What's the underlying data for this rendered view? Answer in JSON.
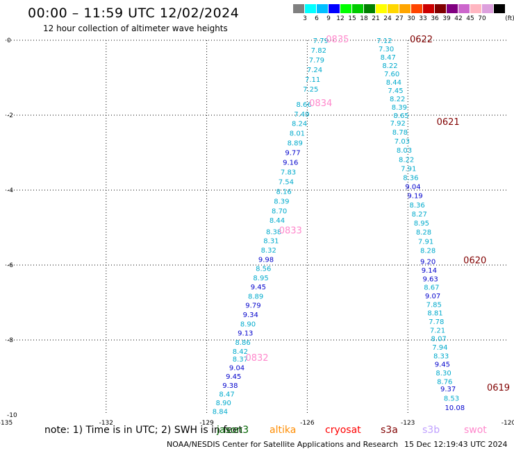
{
  "title": "00:00 – 11:59 UTC 12/02/2024",
  "subtitle": "12 hour collection of altimeter wave heights",
  "colorbar": {
    "unit": "(ft)",
    "colors": [
      "#808080",
      "#00ffff",
      "#00bfff",
      "#0000ff",
      "#00ff00",
      "#00cc00",
      "#008000",
      "#ffff00",
      "#ffd700",
      "#ffa500",
      "#ff4500",
      "#cc0000",
      "#800000",
      "#800080",
      "#cc66cc",
      "#ffb6c1",
      "#dda0dd",
      "#000000"
    ],
    "labels": [
      "3",
      "6",
      "9",
      "12",
      "15",
      "18",
      "21",
      "24",
      "27",
      "30",
      "33",
      "36",
      "39",
      "42",
      "45",
      "70"
    ]
  },
  "axes": {
    "x_ticks": [
      "-135",
      "-132",
      "-129",
      "-126",
      "-123",
      "-120"
    ],
    "y_ticks": [
      "0",
      "-2",
      "-4",
      "-6",
      "-8",
      "-10"
    ],
    "x_range": [
      -135,
      -120
    ],
    "y_range": [
      -10,
      0
    ]
  },
  "passes": [
    {
      "label": "0622",
      "color": "#800000",
      "values": [
        "7.12",
        "7.30",
        "8.47",
        "8.22",
        "7.60",
        "8.44",
        "7.45",
        "8.22",
        "8.39",
        "8.65"
      ]
    },
    {
      "label": "0621",
      "color": "#800000",
      "values": [
        "7.92",
        "8.78",
        "7.03",
        "8.03",
        "8.22",
        "7.91",
        "8.36",
        "9.04",
        "9.19",
        "8.36",
        "8.27",
        "8.95",
        "8.28",
        "7.91",
        "8.28"
      ]
    },
    {
      "label": "0620",
      "color": "#800000",
      "values": [
        "9.20",
        "9.14",
        "9.63",
        "8.67",
        "9.07",
        "7.85",
        "8.81",
        "7.78",
        "7.21",
        "8.07",
        "7.94",
        "8.33",
        "9.45",
        "8.30",
        "8.76"
      ]
    },
    {
      "label": "0619",
      "color": "#800000",
      "values": [
        "9.37",
        "8.53",
        "10.08"
      ]
    },
    {
      "label": "0835",
      "color": "#ff88cc",
      "values": [
        "7.79",
        "7.82",
        "7.79",
        "7.24",
        "7.11",
        "7.25"
      ]
    },
    {
      "label": "0834",
      "color": "#ff88cc",
      "values": [
        "8.66",
        "7.49",
        "8.24",
        "8.01",
        "8.89",
        "9.77",
        "9.16",
        "7.83",
        "7.54",
        "8.16",
        "8.39",
        "8.70",
        "8.44"
      ]
    },
    {
      "label": "0833",
      "color": "#ff88cc",
      "values": [
        "8.38",
        "8.31",
        "8.32",
        "9.98",
        "8.56",
        "8.95",
        "9.45",
        "8.89",
        "9.79",
        "9.34",
        "8.90",
        "9.13",
        "8.86",
        "8.42"
      ]
    },
    {
      "label": "0832",
      "color": "#ff88cc",
      "values": [
        "8.37",
        "9.04",
        "9.45",
        "9.38",
        "8.47",
        "8.90",
        "8.84"
      ]
    }
  ],
  "note": "note: 1) Time is in UTC; 2) SWH is in feet",
  "missions": [
    {
      "name": "jason3",
      "color": "#006400"
    },
    {
      "name": "altika",
      "color": "#ff8c00"
    },
    {
      "name": "cryosat",
      "color": "#ff0000"
    },
    {
      "name": "s3a",
      "color": "#800000"
    },
    {
      "name": "s3b",
      "color": "#c0a0ff"
    },
    {
      "name": "swot",
      "color": "#ff88cc"
    }
  ],
  "footer": {
    "credit": "NOAA/NESDIS Center for Satellite Applications and Research",
    "timestamp": "15 Dec 12:19:43 UTC 2024"
  }
}
